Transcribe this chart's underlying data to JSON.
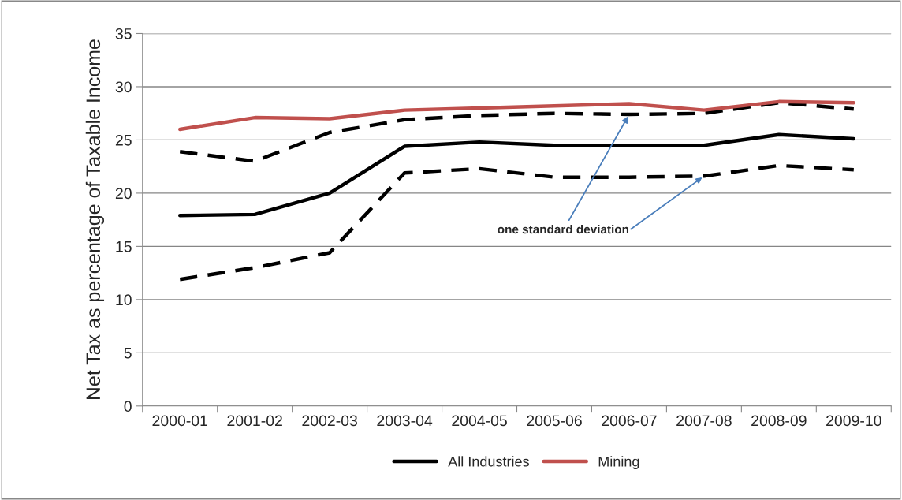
{
  "chart_data": {
    "type": "line",
    "ylabel": "Net Tax as percentage of Taxable Income",
    "categories": [
      "2000-01",
      "2001-02",
      "2002-03",
      "2003-04",
      "2004-05",
      "2005-06",
      "2006-07",
      "2007-08",
      "2008-09",
      "2009-10"
    ],
    "series": [
      {
        "color": "#000000",
        "line_style": "dashed",
        "values": [
          23.9,
          23.0,
          25.7,
          26.9,
          27.3,
          27.5,
          27.4,
          27.5,
          28.5,
          27.9
        ]
      },
      {
        "color": "#000000",
        "line_style": "dashed",
        "values": [
          11.9,
          13.0,
          14.4,
          21.9,
          22.3,
          21.5,
          21.5,
          21.6,
          22.6,
          22.2
        ]
      },
      {
        "name": "All Industries",
        "color": "#000000",
        "line_style": "solid",
        "values": [
          17.9,
          18.0,
          20.0,
          24.4,
          24.8,
          24.5,
          24.5,
          24.5,
          25.5,
          25.1
        ]
      },
      {
        "name": "Mining",
        "color": "#c0504d",
        "line_style": "solid",
        "values": [
          26.0,
          27.1,
          27.0,
          27.8,
          28.0,
          28.2,
          28.4,
          27.8,
          28.6,
          28.5
        ]
      }
    ],
    "annotations": [
      {
        "text": "one standard deviation",
        "x": "2006-07",
        "y": 27.4
      }
    ],
    "ylim": [
      0,
      35
    ],
    "yticks": [
      0,
      5,
      10,
      15,
      20,
      25,
      30,
      35
    ],
    "grid": "y",
    "legend": "bottom",
    "marker": "none"
  }
}
